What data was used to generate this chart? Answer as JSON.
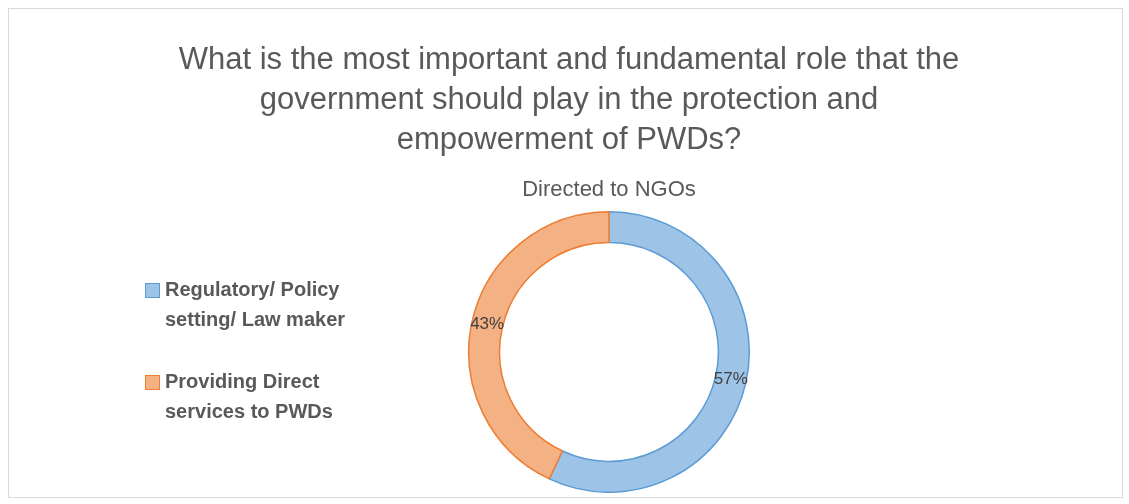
{
  "chart_data": {
    "type": "donut",
    "title": "What is the most important and fundamental role that the government should play in the protection and empowerment of PWDs?",
    "subtitle": "Directed to NGOs",
    "categories": [
      "Regulatory/ Policy setting/ Law maker",
      "Providing Direct services to PWDs"
    ],
    "values": [
      57,
      43
    ],
    "colors": [
      "#9dc3e6",
      "#f4b183"
    ],
    "value_labels": [
      "57%",
      "43%"
    ],
    "legend": "left"
  }
}
